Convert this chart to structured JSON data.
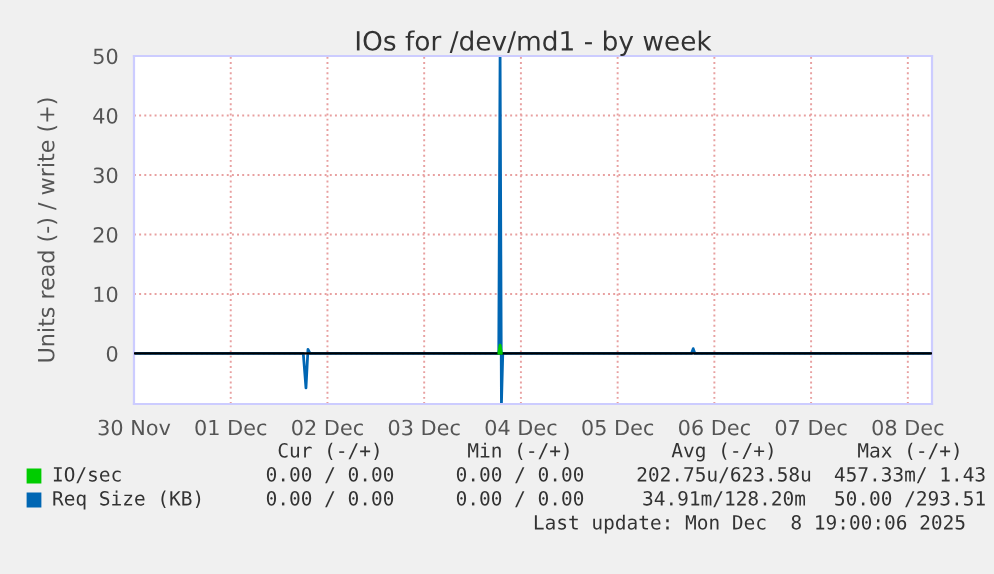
{
  "chart_data": {
    "type": "line",
    "title": "IOs for /dev/md1 - by week",
    "ylabel": "Units read (-) / write (+)",
    "x": [
      "2025-11-30T00:00",
      "2025-12-01T18:00",
      "2025-12-01T18:40",
      "2025-12-01T19:10",
      "2025-12-01T19:40",
      "2025-12-03T18:30",
      "2025-12-03T18:50",
      "2025-12-03T19:10",
      "2025-12-03T19:30",
      "2025-12-05T18:20",
      "2025-12-05T18:45",
      "2025-12-05T19:10",
      "2025-12-08T06:00"
    ],
    "series": [
      {
        "name": "IO/sec",
        "color": "#00cc00",
        "values": [
          null,
          null,
          null,
          null,
          null,
          0,
          1.4,
          0,
          null,
          null,
          null,
          null,
          null
        ]
      },
      {
        "name": "Req Size (KB)",
        "color": "#0066b3",
        "values": [
          0,
          0,
          -5.8,
          0.7,
          0,
          0,
          50,
          -8.5,
          0,
          0,
          0.8,
          0,
          0
        ]
      }
    ],
    "xlim": [
      "2025-11-30T00:00",
      "2025-12-08T06:00"
    ],
    "xticks": [
      {
        "value": "2025-11-30T00:00",
        "label": "30 Nov"
      },
      {
        "value": "2025-12-01T00:00",
        "label": "01 Dec"
      },
      {
        "value": "2025-12-02T00:00",
        "label": "02 Dec"
      },
      {
        "value": "2025-12-03T00:00",
        "label": "03 Dec"
      },
      {
        "value": "2025-12-04T00:00",
        "label": "04 Dec"
      },
      {
        "value": "2025-12-05T00:00",
        "label": "05 Dec"
      },
      {
        "value": "2025-12-06T00:00",
        "label": "06 Dec"
      },
      {
        "value": "2025-12-07T00:00",
        "label": "07 Dec"
      },
      {
        "value": "2025-12-08T00:00",
        "label": "08 Dec"
      }
    ],
    "ylim": [
      -8.5,
      50
    ],
    "yticks": [
      0,
      10,
      20,
      30,
      40,
      50
    ],
    "ref_lines": [
      {
        "axis": "y",
        "value": 0,
        "color": "#000000"
      }
    ],
    "grid": true,
    "legend": "bottom left",
    "annotations": [
      "Cur (-/+)",
      "Min (-/+)",
      "Avg (-/+)",
      "Max (-/+)",
      "0.00 / 0.00",
      "0.00 / 0.00",
      "202.75u/623.58u",
      "457.33m/ 1.43",
      "0.00 / 0.00",
      "0.00 / 0.00",
      "34.91m/128.20m",
      "50.00 /293.51",
      "Last update: Mon Dec  8 19:00:06 2025"
    ]
  }
}
